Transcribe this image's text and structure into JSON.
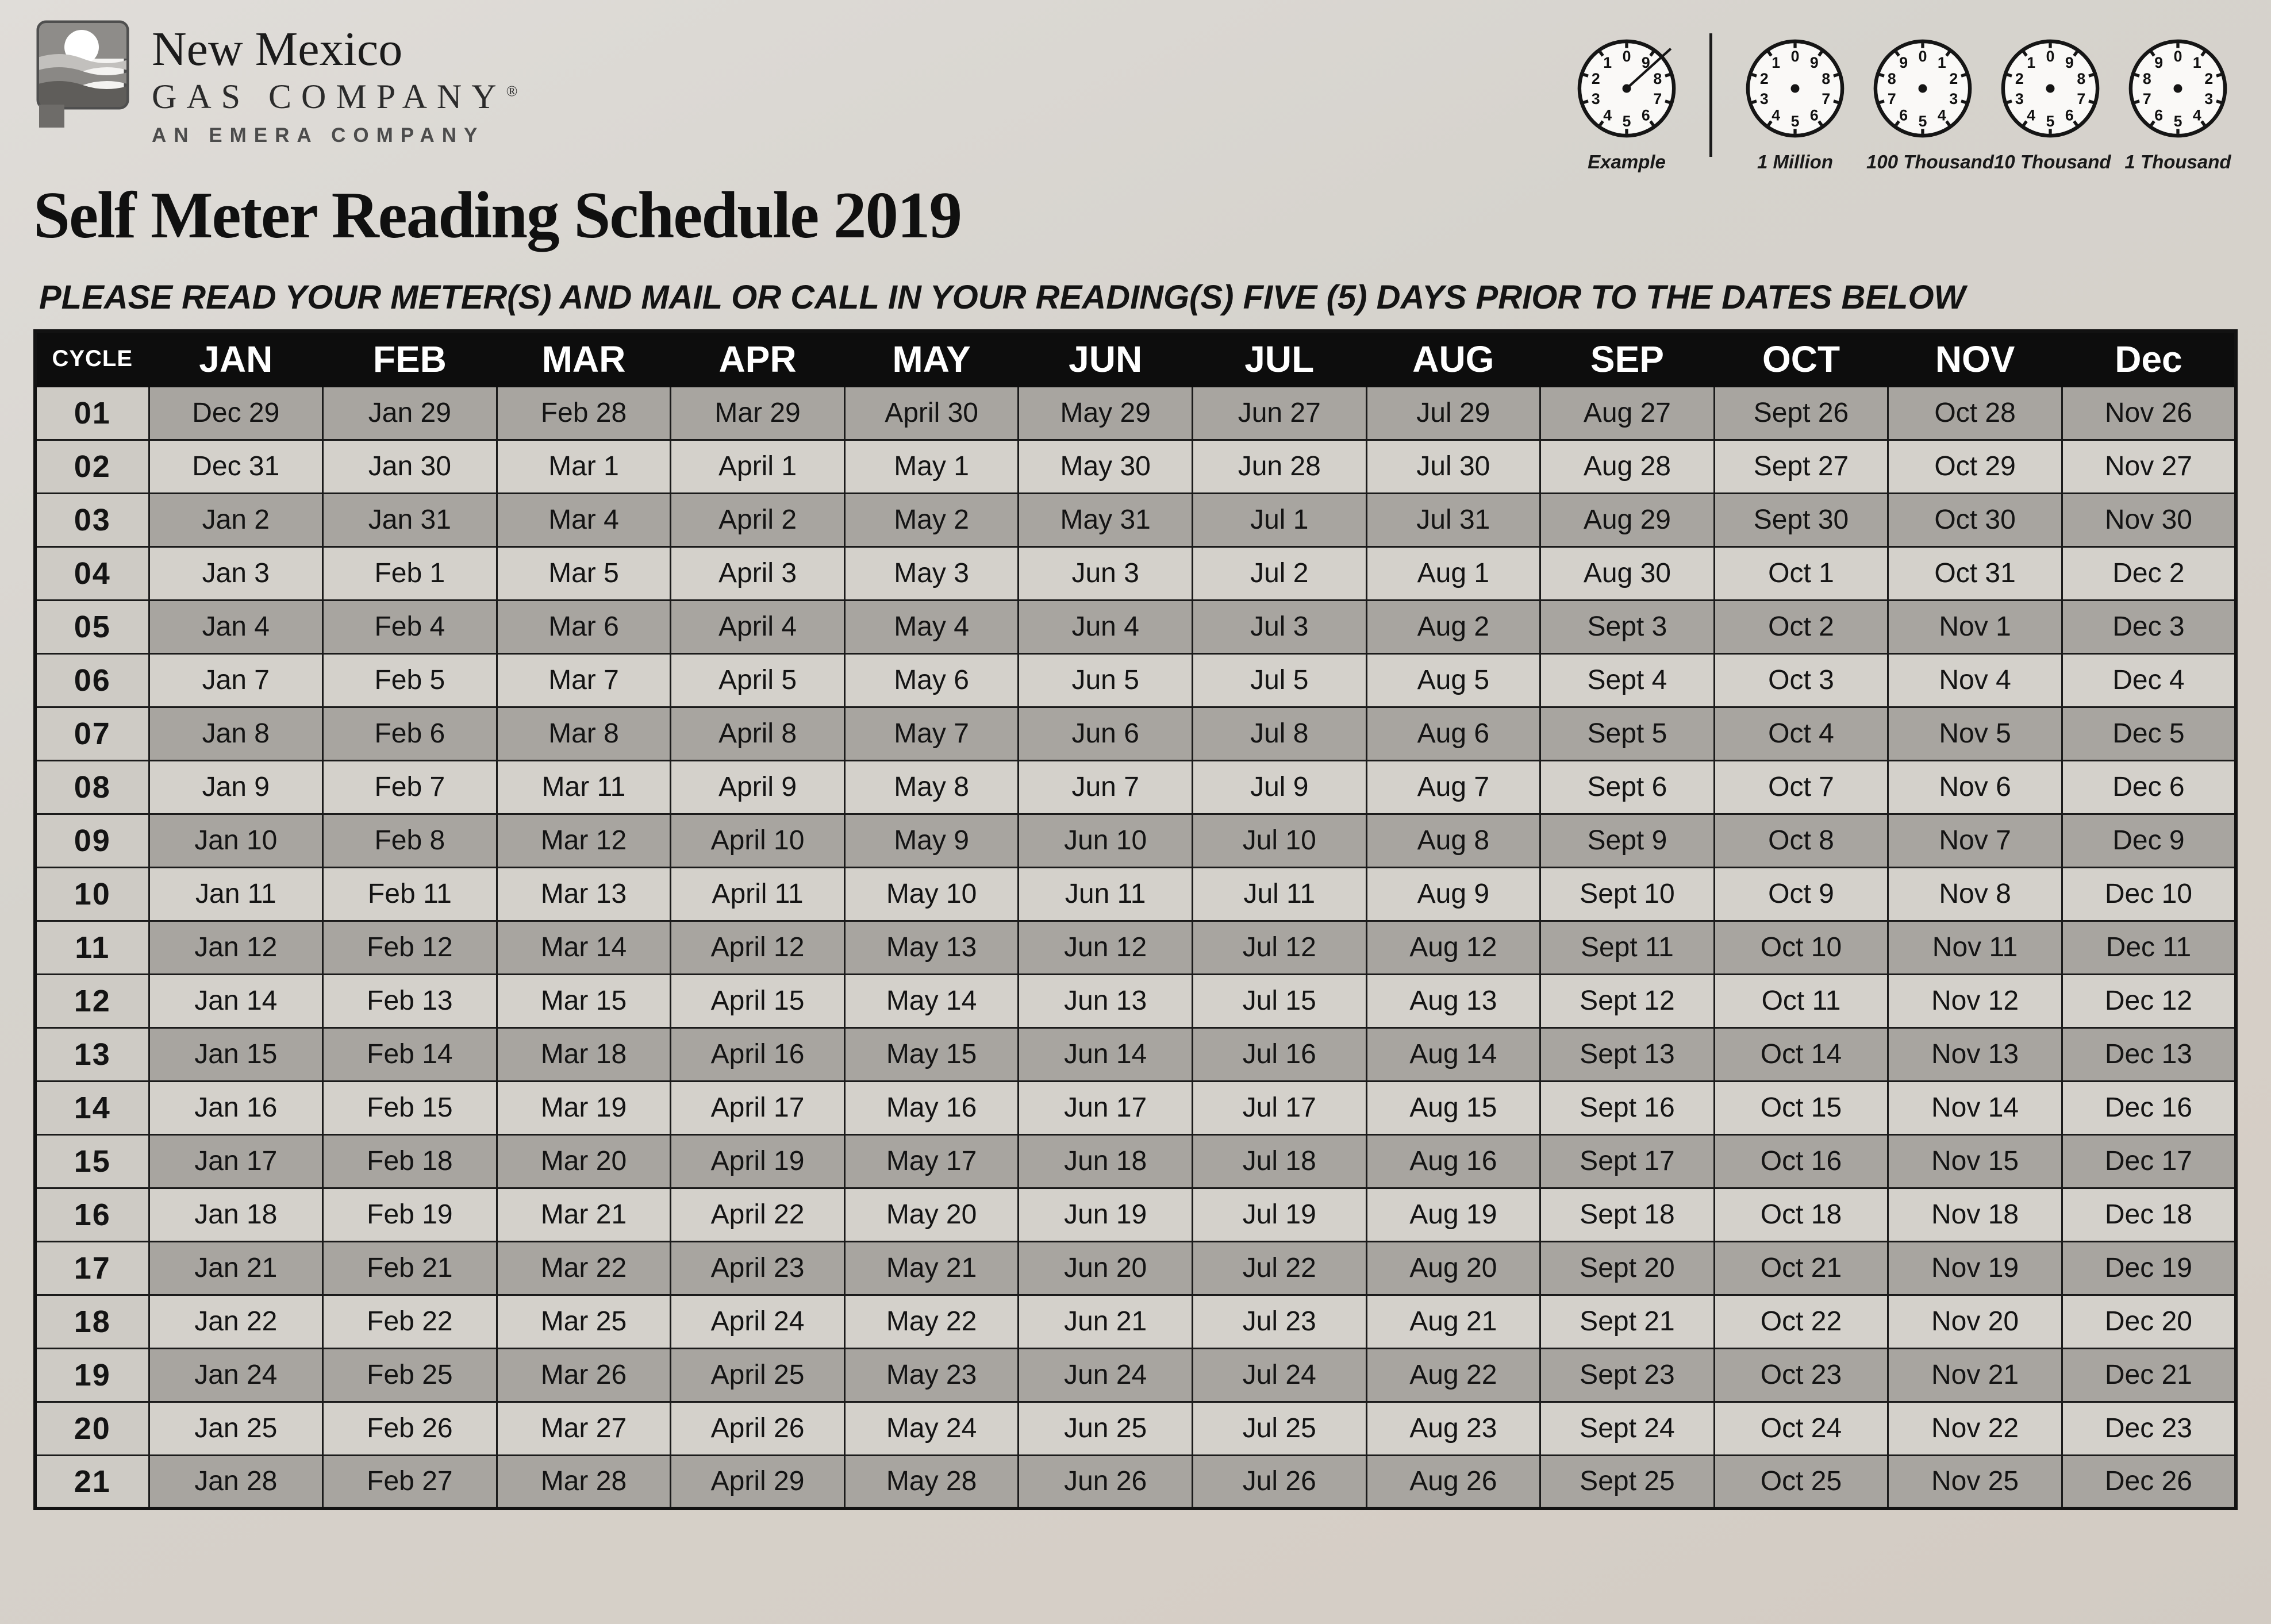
{
  "brand": {
    "name_line1": "New Mexico",
    "name_line2": "GAS COMPANY",
    "registered_mark": "®",
    "tagline": "AN EMERA COMPANY"
  },
  "title": "Self Meter Reading Schedule 2019",
  "instruction": "PLEASE READ YOUR METER(S) AND MAIL OR CALL IN YOUR READING(S) FIVE (5) DAYS PRIOR TO THE DATES BELOW",
  "dials": [
    {
      "label": "Example",
      "direction": "ccw",
      "needle": true
    },
    {
      "label": "1 Million",
      "direction": "ccw",
      "needle": false
    },
    {
      "label": "100 Thousand",
      "direction": "cw",
      "needle": false
    },
    {
      "label": "10 Thousand",
      "direction": "ccw",
      "needle": false
    },
    {
      "label": "1 Thousand",
      "direction": "cw",
      "needle": false
    }
  ],
  "colors": {
    "paper": "#d6d3cd",
    "header_bg": "#0d0d0d",
    "header_text": "#ffffff",
    "row_dark": "#a8a5a0",
    "row_light": "#d4d1cb",
    "border": "#1b1b1b"
  },
  "table": {
    "cycle_header": "CYCLE",
    "columns": [
      "JAN",
      "FEB",
      "MAR",
      "APR",
      "MAY",
      "JUN",
      "JUL",
      "AUG",
      "SEP",
      "OCT",
      "NOV",
      "Dec"
    ],
    "rows": [
      {
        "cycle": "01",
        "dates": [
          "Dec 29",
          "Jan 29",
          "Feb 28",
          "Mar 29",
          "April 30",
          "May 29",
          "Jun 27",
          "Jul 29",
          "Aug 27",
          "Sept 26",
          "Oct 28",
          "Nov 26"
        ]
      },
      {
        "cycle": "02",
        "dates": [
          "Dec 31",
          "Jan 30",
          "Mar 1",
          "April 1",
          "May 1",
          "May 30",
          "Jun 28",
          "Jul 30",
          "Aug 28",
          "Sept 27",
          "Oct 29",
          "Nov 27"
        ]
      },
      {
        "cycle": "03",
        "dates": [
          "Jan 2",
          "Jan 31",
          "Mar 4",
          "April 2",
          "May 2",
          "May 31",
          "Jul 1",
          "Jul 31",
          "Aug 29",
          "Sept 30",
          "Oct 30",
          "Nov 30"
        ]
      },
      {
        "cycle": "04",
        "dates": [
          "Jan 3",
          "Feb 1",
          "Mar 5",
          "April 3",
          "May 3",
          "Jun 3",
          "Jul 2",
          "Aug 1",
          "Aug 30",
          "Oct 1",
          "Oct 31",
          "Dec 2"
        ]
      },
      {
        "cycle": "05",
        "dates": [
          "Jan 4",
          "Feb 4",
          "Mar 6",
          "April 4",
          "May 4",
          "Jun 4",
          "Jul 3",
          "Aug 2",
          "Sept 3",
          "Oct 2",
          "Nov 1",
          "Dec 3"
        ]
      },
      {
        "cycle": "06",
        "dates": [
          "Jan 7",
          "Feb 5",
          "Mar 7",
          "April 5",
          "May 6",
          "Jun 5",
          "Jul 5",
          "Aug 5",
          "Sept 4",
          "Oct 3",
          "Nov 4",
          "Dec 4"
        ]
      },
      {
        "cycle": "07",
        "dates": [
          "Jan 8",
          "Feb 6",
          "Mar 8",
          "April 8",
          "May 7",
          "Jun 6",
          "Jul 8",
          "Aug 6",
          "Sept 5",
          "Oct 4",
          "Nov 5",
          "Dec 5"
        ]
      },
      {
        "cycle": "08",
        "dates": [
          "Jan 9",
          "Feb 7",
          "Mar 11",
          "April 9",
          "May 8",
          "Jun 7",
          "Jul 9",
          "Aug 7",
          "Sept 6",
          "Oct 7",
          "Nov 6",
          "Dec 6"
        ]
      },
      {
        "cycle": "09",
        "dates": [
          "Jan 10",
          "Feb 8",
          "Mar 12",
          "April 10",
          "May 9",
          "Jun 10",
          "Jul 10",
          "Aug 8",
          "Sept 9",
          "Oct 8",
          "Nov 7",
          "Dec 9"
        ]
      },
      {
        "cycle": "10",
        "dates": [
          "Jan 11",
          "Feb 11",
          "Mar 13",
          "April 11",
          "May 10",
          "Jun 11",
          "Jul 11",
          "Aug 9",
          "Sept 10",
          "Oct 9",
          "Nov 8",
          "Dec 10"
        ]
      },
      {
        "cycle": "11",
        "dates": [
          "Jan 12",
          "Feb 12",
          "Mar 14",
          "April 12",
          "May 13",
          "Jun 12",
          "Jul 12",
          "Aug 12",
          "Sept 11",
          "Oct 10",
          "Nov 11",
          "Dec 11"
        ]
      },
      {
        "cycle": "12",
        "dates": [
          "Jan 14",
          "Feb 13",
          "Mar 15",
          "April 15",
          "May 14",
          "Jun 13",
          "Jul 15",
          "Aug 13",
          "Sept 12",
          "Oct 11",
          "Nov 12",
          "Dec 12"
        ]
      },
      {
        "cycle": "13",
        "dates": [
          "Jan 15",
          "Feb 14",
          "Mar 18",
          "April 16",
          "May 15",
          "Jun 14",
          "Jul 16",
          "Aug 14",
          "Sept 13",
          "Oct 14",
          "Nov 13",
          "Dec 13"
        ]
      },
      {
        "cycle": "14",
        "dates": [
          "Jan 16",
          "Feb 15",
          "Mar 19",
          "April 17",
          "May 16",
          "Jun 17",
          "Jul 17",
          "Aug 15",
          "Sept 16",
          "Oct 15",
          "Nov 14",
          "Dec 16"
        ]
      },
      {
        "cycle": "15",
        "dates": [
          "Jan 17",
          "Feb 18",
          "Mar 20",
          "April 19",
          "May 17",
          "Jun 18",
          "Jul 18",
          "Aug 16",
          "Sept 17",
          "Oct 16",
          "Nov 15",
          "Dec 17"
        ]
      },
      {
        "cycle": "16",
        "dates": [
          "Jan 18",
          "Feb 19",
          "Mar 21",
          "April 22",
          "May 20",
          "Jun 19",
          "Jul 19",
          "Aug 19",
          "Sept 18",
          "Oct 18",
          "Nov 18",
          "Dec 18"
        ]
      },
      {
        "cycle": "17",
        "dates": [
          "Jan 21",
          "Feb 21",
          "Mar 22",
          "April 23",
          "May 21",
          "Jun 20",
          "Jul 22",
          "Aug 20",
          "Sept 20",
          "Oct 21",
          "Nov 19",
          "Dec 19"
        ]
      },
      {
        "cycle": "18",
        "dates": [
          "Jan 22",
          "Feb 22",
          "Mar 25",
          "April 24",
          "May 22",
          "Jun 21",
          "Jul 23",
          "Aug 21",
          "Sept 21",
          "Oct 22",
          "Nov 20",
          "Dec 20"
        ]
      },
      {
        "cycle": "19",
        "dates": [
          "Jan 24",
          "Feb 25",
          "Mar 26",
          "April 25",
          "May 23",
          "Jun 24",
          "Jul 24",
          "Aug 22",
          "Sept 23",
          "Oct 23",
          "Nov 21",
          "Dec 21"
        ]
      },
      {
        "cycle": "20",
        "dates": [
          "Jan 25",
          "Feb 26",
          "Mar 27",
          "April 26",
          "May 24",
          "Jun 25",
          "Jul 25",
          "Aug 23",
          "Sept 24",
          "Oct 24",
          "Nov 22",
          "Dec 23"
        ]
      },
      {
        "cycle": "21",
        "dates": [
          "Jan 28",
          "Feb 27",
          "Mar 28",
          "April 29",
          "May 28",
          "Jun 26",
          "Jul 26",
          "Aug 26",
          "Sept 25",
          "Oct 25",
          "Nov 25",
          "Dec 26"
        ]
      }
    ]
  }
}
